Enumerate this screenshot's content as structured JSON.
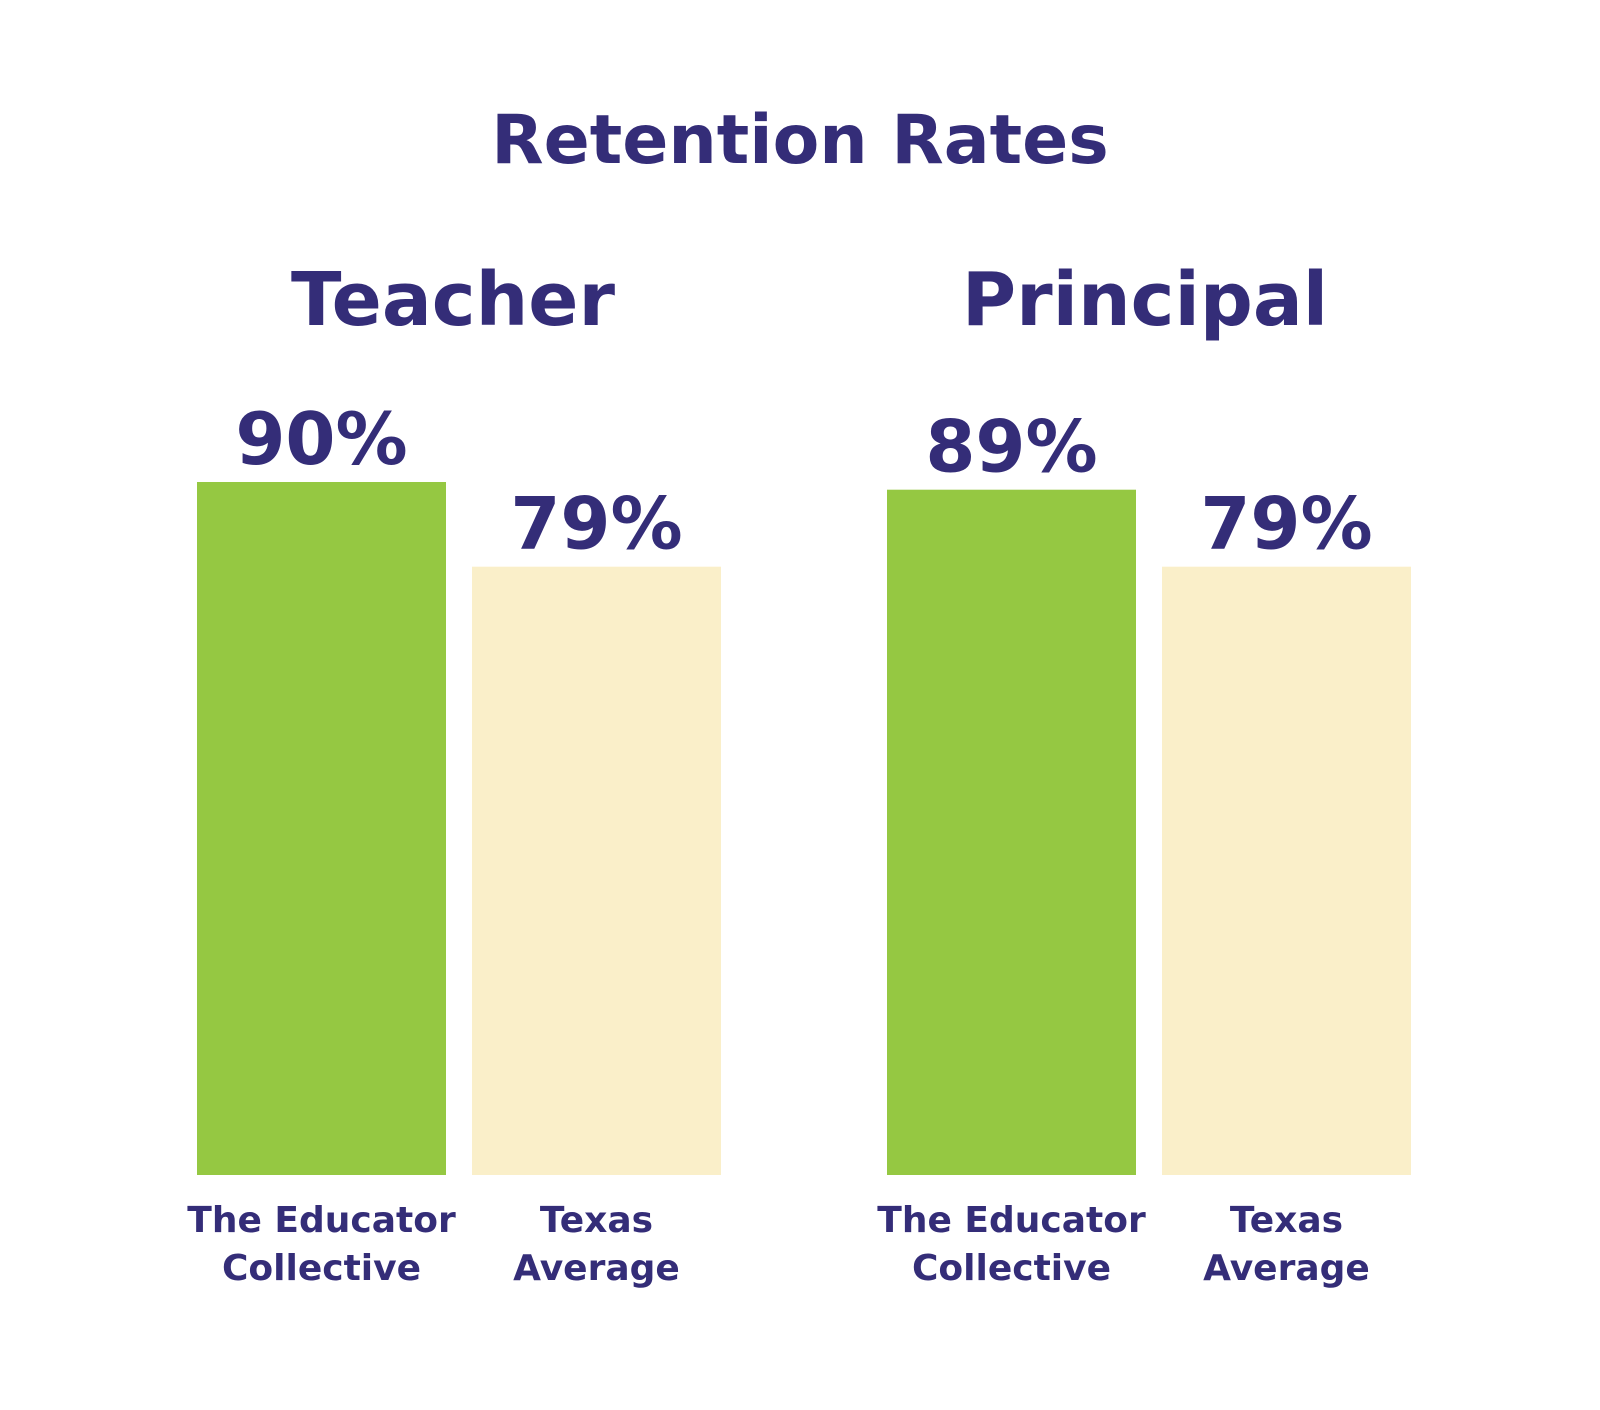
{
  "chart_data": [
    {
      "type": "bar",
      "title": "Retention Rates",
      "subtitle": "Teacher",
      "categories": [
        "The Educator Collective",
        "Texas Average"
      ],
      "category_lines": [
        [
          "The Educator",
          "Collective"
        ],
        [
          "Texas",
          "Average"
        ]
      ],
      "values": [
        90,
        79
      ],
      "value_labels": [
        "90%",
        "79%"
      ],
      "ylim": [
        0,
        100
      ],
      "grid": false
    },
    {
      "type": "bar",
      "subtitle": "Principal",
      "categories": [
        "The Educator Collective",
        "Texas Average"
      ],
      "category_lines": [
        [
          "The Educator",
          "Collective"
        ],
        [
          "Texas",
          "Average"
        ]
      ],
      "values": [
        89,
        79
      ],
      "value_labels": [
        "89%",
        "79%"
      ],
      "ylim": [
        0,
        100
      ],
      "grid": false
    }
  ],
  "colors": {
    "text": "#342D78",
    "bar_primary": "#95C842",
    "bar_secondary": "#FAEFC9",
    "background": "#FFFFFF"
  }
}
